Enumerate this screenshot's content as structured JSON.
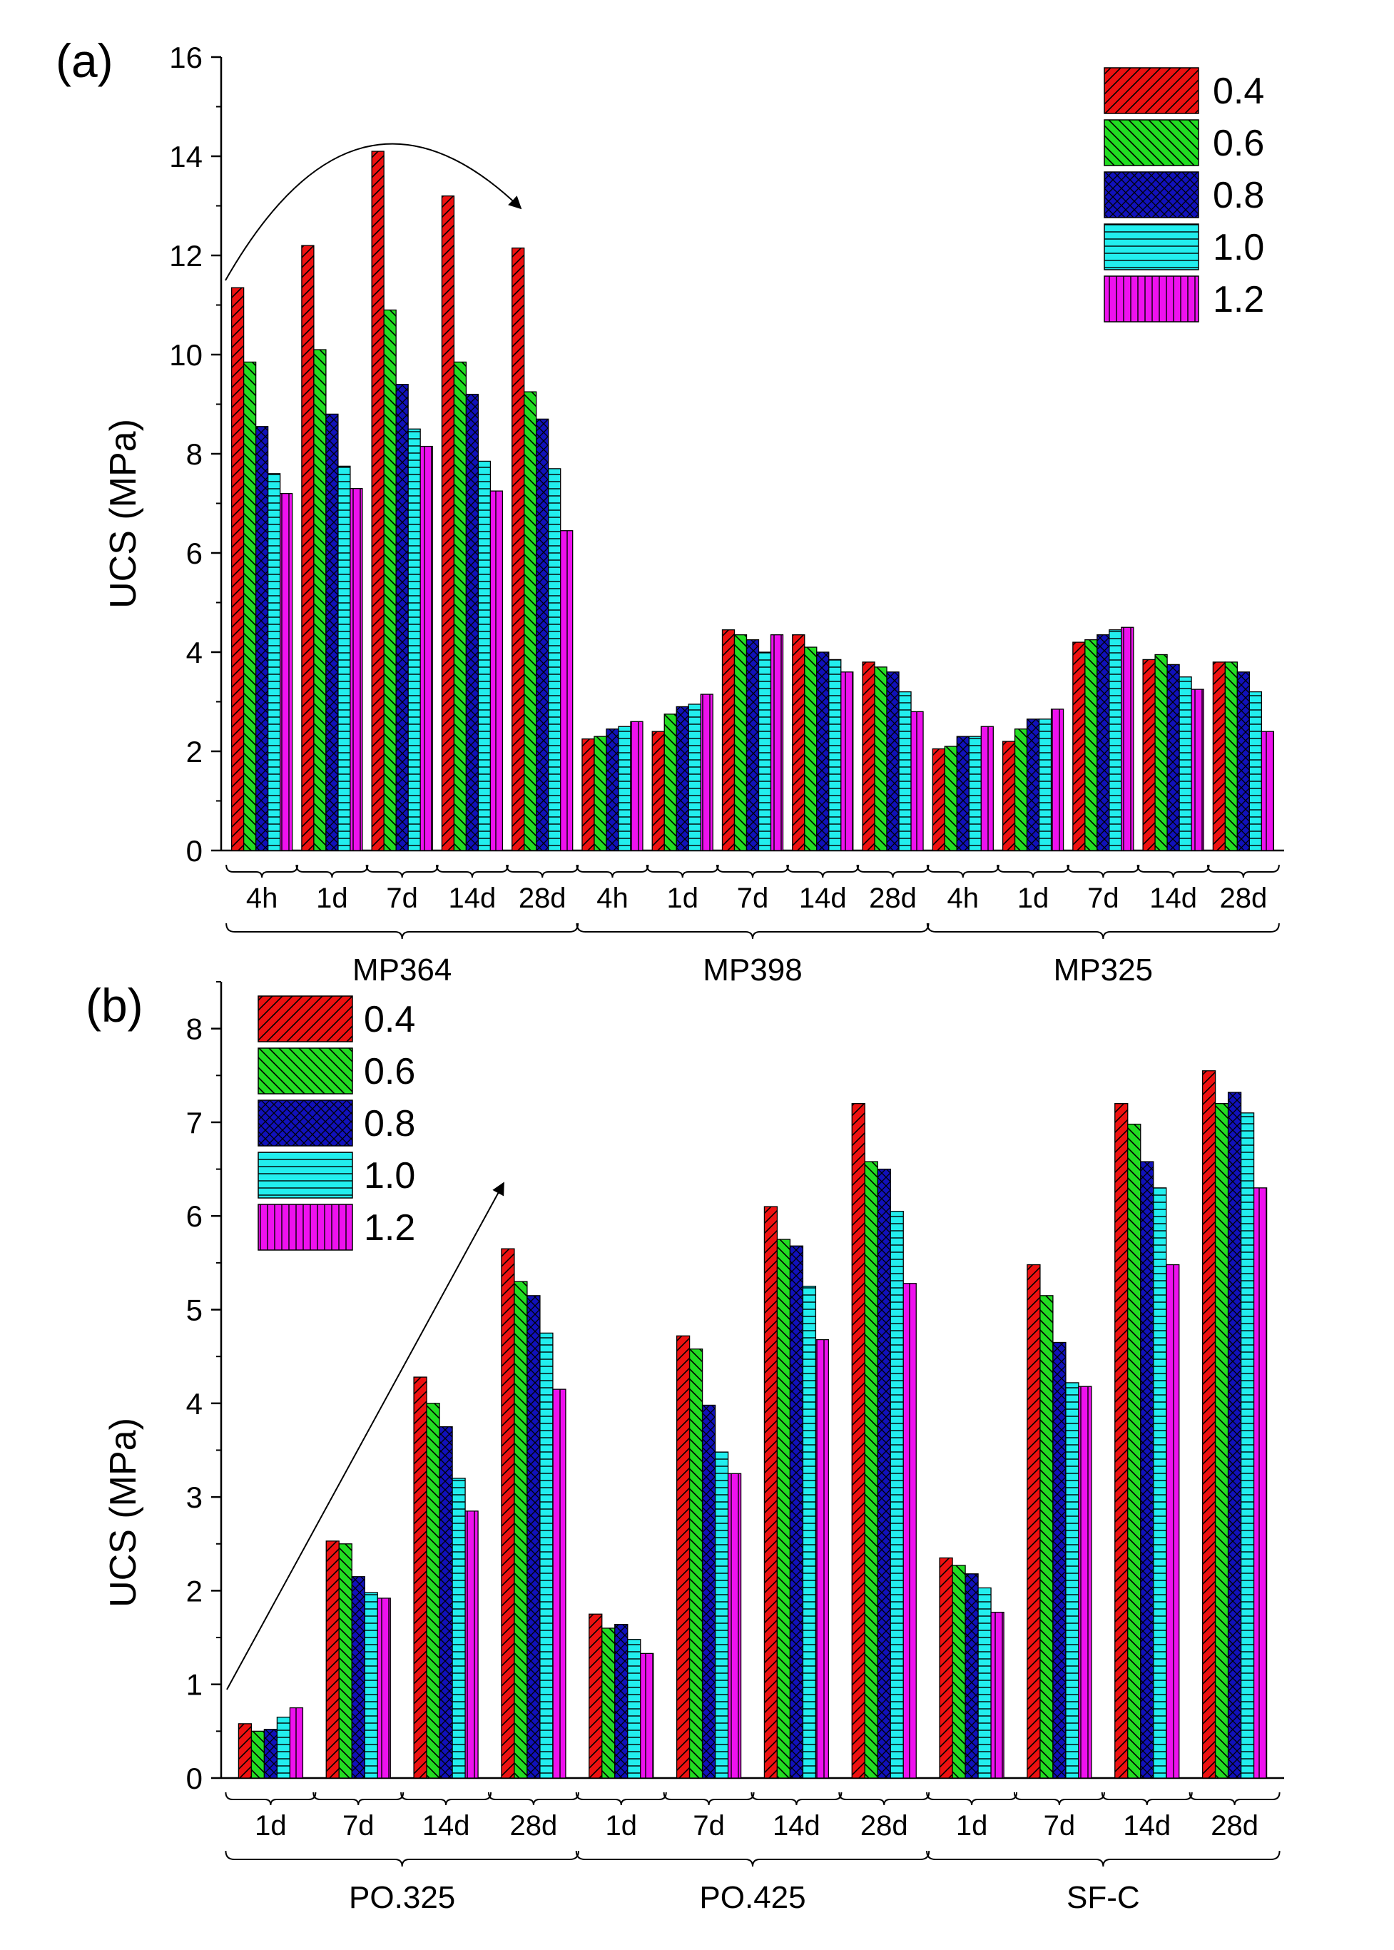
{
  "legend_colors": [
    "#ee1111",
    "#22dd22",
    "#1111bb",
    "#22eeee",
    "#ee11ee"
  ],
  "chart_data": [
    {
      "type": "bar",
      "panel_label": "(a)",
      "ylabel": "UCS (MPa)",
      "ylim": [
        0,
        16
      ],
      "yticks": [
        0,
        2,
        4,
        6,
        8,
        10,
        12,
        14,
        16
      ],
      "legend_position": "top-right",
      "groups": [
        {
          "name": "MP364",
          "categories": [
            "4h",
            "1d",
            "7d",
            "14d",
            "28d"
          ]
        },
        {
          "name": "MP398",
          "categories": [
            "4h",
            "1d",
            "7d",
            "14d",
            "28d"
          ]
        },
        {
          "name": "MP325",
          "categories": [
            "4h",
            "1d",
            "7d",
            "14d",
            "28d"
          ]
        }
      ],
      "series": [
        {
          "name": "0.4",
          "values": [
            11.35,
            12.2,
            14.1,
            13.2,
            12.15,
            2.25,
            2.4,
            4.45,
            4.35,
            3.8,
            2.05,
            2.2,
            4.2,
            3.85,
            3.8
          ]
        },
        {
          "name": "0.6",
          "values": [
            9.85,
            10.1,
            10.9,
            9.85,
            9.25,
            2.3,
            2.75,
            4.35,
            4.1,
            3.7,
            2.1,
            2.45,
            4.25,
            3.95,
            3.8
          ]
        },
        {
          "name": "0.8",
          "values": [
            8.55,
            8.8,
            9.4,
            9.2,
            8.7,
            2.45,
            2.9,
            4.25,
            4.0,
            3.6,
            2.3,
            2.65,
            4.35,
            3.75,
            3.6
          ]
        },
        {
          "name": "1.0",
          "values": [
            7.6,
            7.75,
            8.5,
            7.85,
            7.7,
            2.5,
            2.95,
            4.0,
            3.85,
            3.2,
            2.3,
            2.65,
            4.45,
            3.5,
            3.2
          ]
        },
        {
          "name": "1.2",
          "values": [
            7.2,
            7.3,
            8.15,
            7.25,
            6.45,
            2.6,
            3.15,
            4.35,
            3.6,
            2.8,
            2.5,
            2.85,
            4.5,
            3.25,
            2.4
          ]
        }
      ],
      "annotations": [
        "curved arrow"
      ]
    },
    {
      "type": "bar",
      "panel_label": "(b)",
      "ylabel": "UCS (MPa)",
      "ylim": [
        0,
        8.5
      ],
      "yticks": [
        0,
        1,
        2,
        3,
        4,
        5,
        6,
        7,
        8
      ],
      "legend_position": "top-left",
      "groups": [
        {
          "name": "PO.325",
          "categories": [
            "1d",
            "7d",
            "14d",
            "28d"
          ]
        },
        {
          "name": "PO.425",
          "categories": [
            "1d",
            "7d",
            "14d",
            "28d"
          ]
        },
        {
          "name": "SF-C",
          "categories": [
            "1d",
            "7d",
            "14d",
            "28d"
          ]
        }
      ],
      "series": [
        {
          "name": "0.4",
          "values": [
            0.58,
            2.53,
            4.28,
            5.65,
            1.75,
            4.72,
            6.1,
            7.2,
            2.35,
            5.48,
            7.2,
            7.55
          ]
        },
        {
          "name": "0.6",
          "values": [
            0.5,
            2.5,
            4.0,
            5.3,
            1.6,
            4.58,
            5.75,
            6.58,
            2.27,
            5.15,
            6.98,
            7.2
          ]
        },
        {
          "name": "0.8",
          "values": [
            0.52,
            2.15,
            3.75,
            5.15,
            1.64,
            3.98,
            5.68,
            6.5,
            2.18,
            4.65,
            6.58,
            7.32
          ]
        },
        {
          "name": "1.0",
          "values": [
            0.65,
            1.98,
            3.2,
            4.75,
            1.48,
            3.48,
            5.25,
            6.05,
            2.03,
            4.22,
            6.3,
            7.1
          ]
        },
        {
          "name": "1.2",
          "values": [
            0.75,
            1.92,
            2.85,
            4.15,
            1.33,
            3.25,
            4.68,
            5.28,
            1.77,
            4.18,
            5.48,
            6.3
          ]
        }
      ],
      "annotations": [
        "straight arrow"
      ]
    }
  ]
}
